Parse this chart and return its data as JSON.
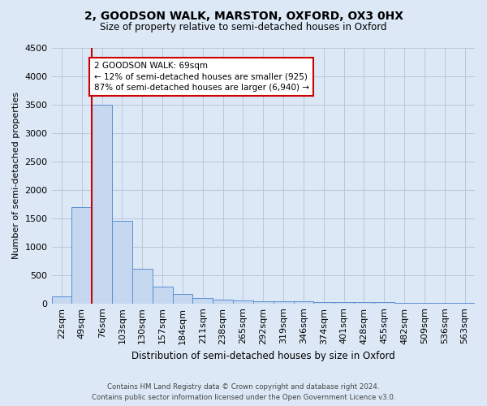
{
  "title": "2, GOODSON WALK, MARSTON, OXFORD, OX3 0HX",
  "subtitle": "Size of property relative to semi-detached houses in Oxford",
  "xlabel": "Distribution of semi-detached houses by size in Oxford",
  "ylabel": "Number of semi-detached properties",
  "footer_line1": "Contains HM Land Registry data © Crown copyright and database right 2024.",
  "footer_line2": "Contains public sector information licensed under the Open Government Licence v3.0.",
  "bar_labels": [
    "22sqm",
    "49sqm",
    "76sqm",
    "103sqm",
    "130sqm",
    "157sqm",
    "184sqm",
    "211sqm",
    "238sqm",
    "265sqm",
    "292sqm",
    "319sqm",
    "346sqm",
    "374sqm",
    "401sqm",
    "428sqm",
    "455sqm",
    "482sqm",
    "509sqm",
    "536sqm",
    "563sqm"
  ],
  "bar_values": [
    120,
    1700,
    3500,
    1450,
    610,
    300,
    160,
    100,
    70,
    55,
    40,
    35,
    35,
    30,
    25,
    20,
    18,
    15,
    15,
    12,
    10
  ],
  "bar_color": "#c5d8f0",
  "bar_edge_color": "#5b8fd4",
  "ylim": [
    0,
    4500
  ],
  "annotation_text": "2 GOODSON WALK: 69sqm\n← 12% of semi-detached houses are smaller (925)\n87% of semi-detached houses are larger (6,940) →",
  "annotation_box_color": "#ffffff",
  "annotation_box_edge": "#cc0000",
  "vline_color": "#cc0000",
  "grid_color": "#b8c8de",
  "background_color": "#dce8f5",
  "plot_bg_color": "#dce8f5",
  "yticks": [
    0,
    500,
    1000,
    1500,
    2000,
    2500,
    3000,
    3500,
    4000,
    4500
  ]
}
